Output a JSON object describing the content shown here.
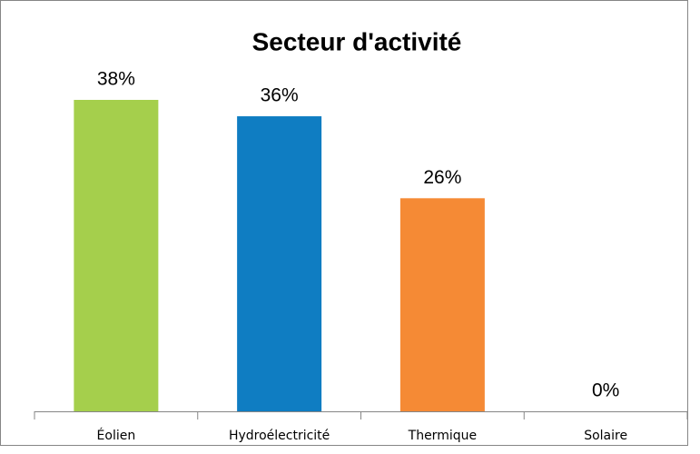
{
  "chart_data": {
    "type": "bar",
    "title": "Secteur d'activité",
    "categories": [
      "Éolien",
      "Hydroélectricité",
      "Thermique",
      "Solaire"
    ],
    "values": [
      38,
      36,
      26,
      0
    ],
    "value_labels": [
      "38%",
      "36%",
      "26%",
      "0%"
    ],
    "colors": [
      "#a5cf4c",
      "#0f7dc2",
      "#f58a35",
      "#8064a2"
    ]
  }
}
